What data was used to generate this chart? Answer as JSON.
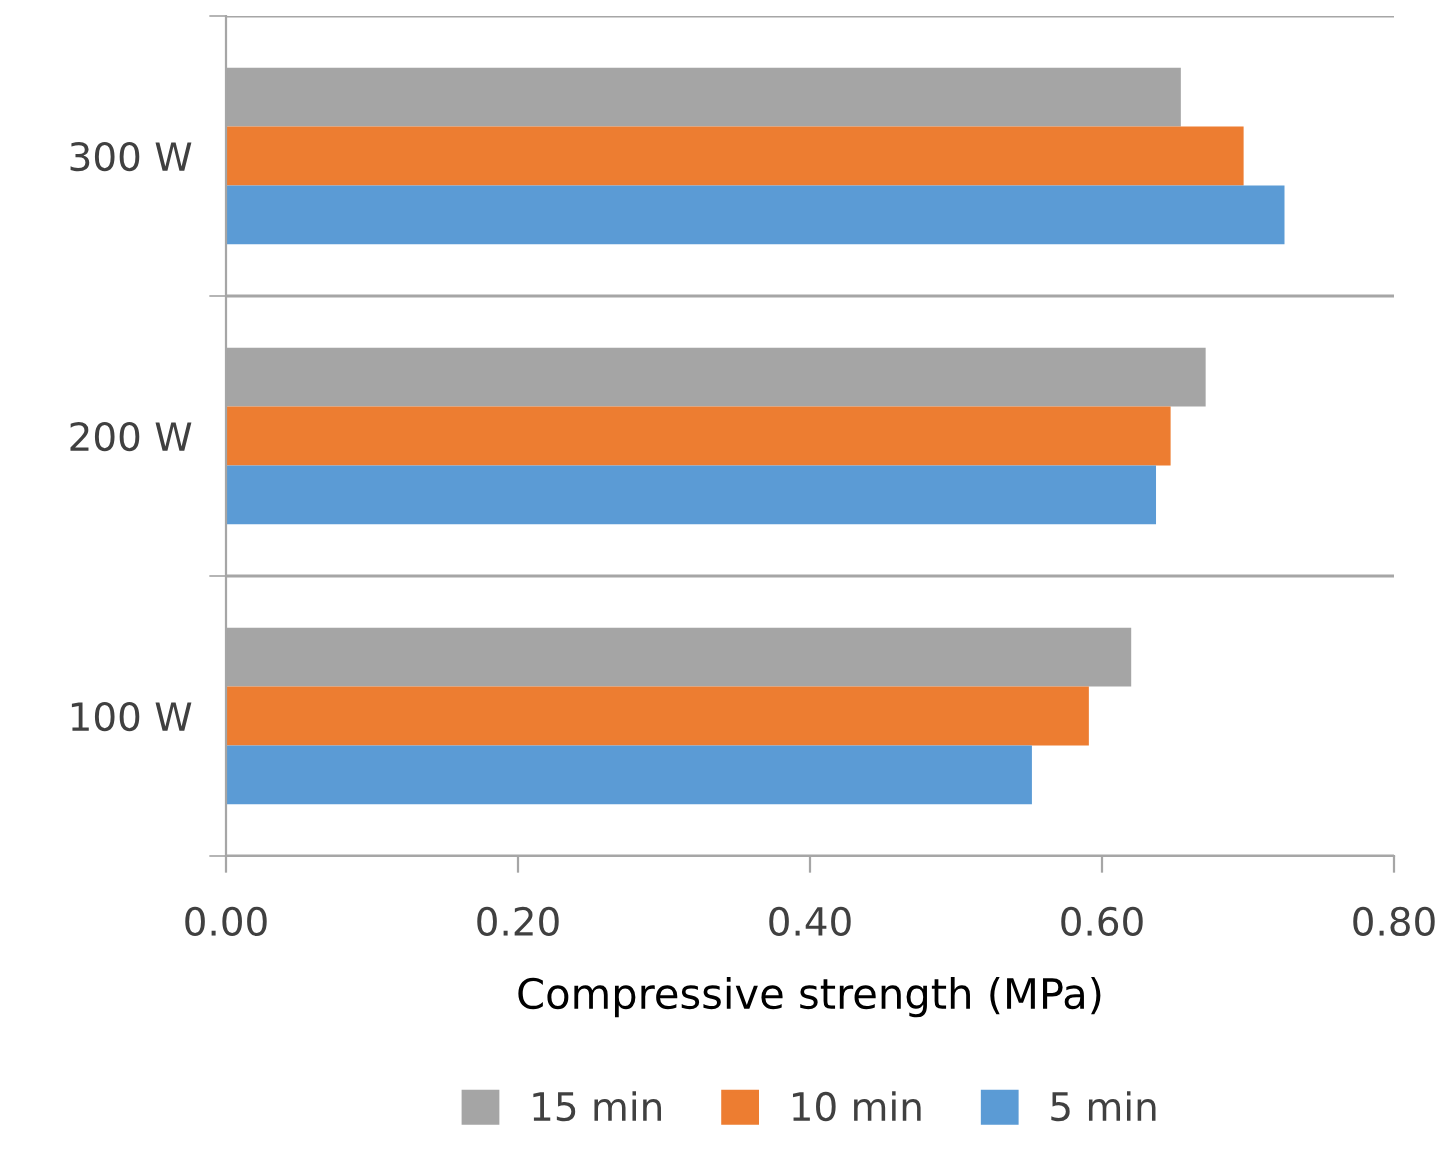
{
  "chart_data": {
    "type": "bar",
    "orientation": "horizontal",
    "xlabel": "Compressive strength (MPa)",
    "categories": [
      "300 W",
      "200 W",
      "100 W"
    ],
    "series": [
      {
        "name": "15 min",
        "color": "#a5a5a5",
        "values": [
          0.654,
          0.671,
          0.62
        ]
      },
      {
        "name": "10 min",
        "color": "#ed7d31",
        "values": [
          0.697,
          0.647,
          0.591
        ]
      },
      {
        "name": "5 min",
        "color": "#5b9bd5",
        "values": [
          0.725,
          0.637,
          0.552
        ]
      }
    ],
    "xlim": [
      0,
      0.8
    ],
    "xticks": [
      {
        "value": 0,
        "label": "0.00"
      },
      {
        "value": 0.2,
        "label": "0.20"
      },
      {
        "value": 0.4,
        "label": "0.40"
      },
      {
        "value": 0.6,
        "label": "0.60"
      },
      {
        "value": 0.8,
        "label": "0.80"
      }
    ],
    "grid": "y",
    "legend": "bottom"
  }
}
